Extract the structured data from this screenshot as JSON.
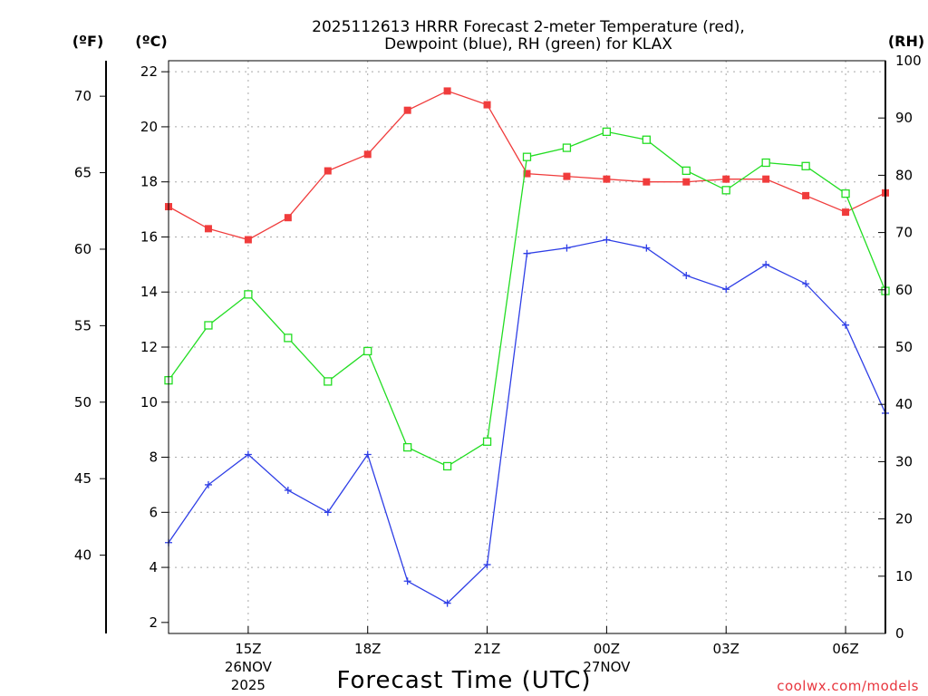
{
  "chart_data": {
    "type": "line",
    "title_line1": "2025112613 HRRR Forecast 2-meter Temperature (red),",
    "title_line2": "Dewpoint (blue), RH (green) for KLAX",
    "xlabel": "Forecast Time (UTC)",
    "credit": "coolwx.com/models",
    "units": {
      "fahrenheit": "(ºF)",
      "celsius": "(ºC)",
      "rh": "(RH)"
    },
    "x_hours": [
      13,
      14,
      15,
      16,
      17,
      18,
      19,
      20,
      21,
      22,
      23,
      24,
      25,
      26,
      27,
      28,
      29,
      30,
      31
    ],
    "xlim": [
      13,
      31
    ],
    "x_ticks": [
      {
        "hour": 15,
        "label": "15Z",
        "date": "26NOV",
        "year": "2025"
      },
      {
        "hour": 18,
        "label": "18Z",
        "date": "",
        "year": ""
      },
      {
        "hour": 21,
        "label": "21Z",
        "date": "",
        "year": ""
      },
      {
        "hour": 24,
        "label": "00Z",
        "date": "27NOV",
        "year": ""
      },
      {
        "hour": 27,
        "label": "03Z",
        "date": "",
        "year": ""
      },
      {
        "hour": 30,
        "label": "06Z",
        "date": "",
        "year": ""
      }
    ],
    "ylim_celsius": [
      1.6,
      22.4
    ],
    "y_celsius_ticks": [
      2,
      4,
      6,
      8,
      10,
      12,
      14,
      16,
      18,
      20,
      22
    ],
    "y_fahrenheit_ticks": [
      40,
      45,
      50,
      55,
      60,
      65,
      70
    ],
    "ylim_rh": [
      0,
      100
    ],
    "y_rh_ticks": [
      0,
      10,
      20,
      30,
      40,
      50,
      60,
      70,
      80,
      90,
      100
    ],
    "grid": true,
    "series": [
      {
        "name": "2-meter Temperature",
        "axis": "celsius",
        "color": "#f03c3c",
        "marker": "filled-square",
        "values": [
          17.1,
          16.3,
          15.9,
          16.7,
          18.4,
          19.0,
          20.6,
          21.3,
          20.8,
          18.3,
          18.2,
          18.1,
          18.0,
          18.0,
          18.1,
          18.1,
          17.5,
          16.9,
          17.6
        ]
      },
      {
        "name": "Dewpoint",
        "axis": "celsius",
        "color": "#2e3ee6",
        "marker": "plus",
        "values": [
          4.9,
          7.0,
          8.1,
          6.8,
          6.0,
          8.1,
          3.5,
          2.7,
          4.1,
          15.4,
          15.6,
          15.9,
          15.6,
          14.6,
          14.1,
          15.0,
          14.3,
          12.8,
          9.6
        ]
      },
      {
        "name": "Relative Humidity",
        "axis": "rh",
        "color": "#22dd22",
        "marker": "open-square",
        "values": [
          44.2,
          53.8,
          59.2,
          51.6,
          44.0,
          49.3,
          32.5,
          29.2,
          33.5,
          83.2,
          84.8,
          87.6,
          86.2,
          80.8,
          77.4,
          82.2,
          81.6,
          76.8,
          59.8
        ]
      }
    ]
  }
}
